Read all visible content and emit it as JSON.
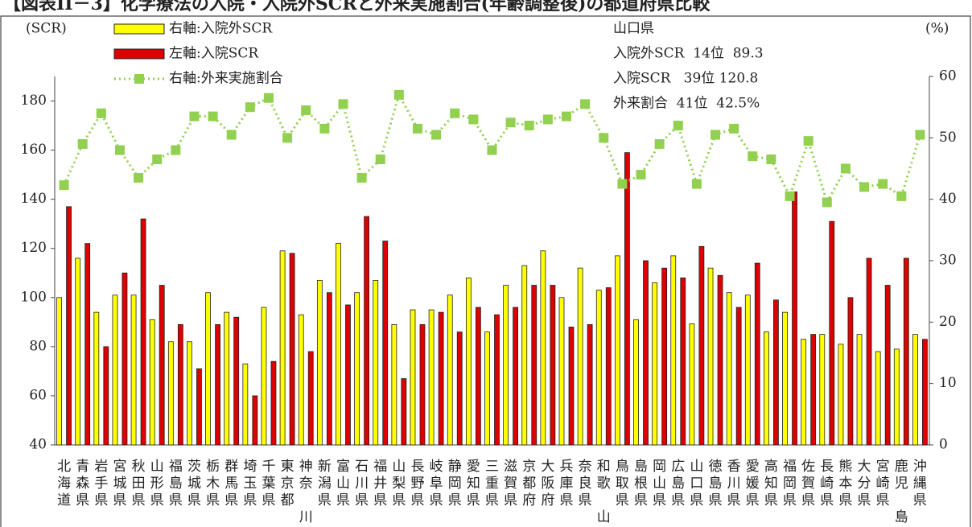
{
  "chart_data": {
    "type": "bar_line",
    "title": "【図表II－3】化学療法の入院・入院外SCRと外来実施割合(年齢調整後)の都道府県比較",
    "ylabel": "(SCR)",
    "y2label": "(%)",
    "categories": [
      "北海道",
      "青森県",
      "岩手県",
      "宮城県",
      "秋田県",
      "山形県",
      "福島県",
      "茨城県",
      "栃木県",
      "群馬県",
      "埼玉県",
      "千葉県",
      "東京都",
      "神奈川県",
      "新潟県",
      "富山県",
      "石川県",
      "福井県",
      "山梨県",
      "長野県",
      "岐阜県",
      "静岡県",
      "愛知県",
      "三重県",
      "滋賀県",
      "京都府",
      "大阪府",
      "兵庫県",
      "奈良県",
      "和歌山県",
      "鳥取県",
      "島根県",
      "岡山県",
      "広島県",
      "山口県",
      "徳島県",
      "香川県",
      "愛媛県",
      "高知県",
      "福岡県",
      "佐賀県",
      "長崎県",
      "熊本県",
      "大分県",
      "宮崎県",
      "鹿児島県",
      "沖縄県"
    ],
    "series": [
      {
        "name": "右軸:入院外SCR",
        "type": "bar",
        "color": "#ffff00",
        "axis": "y",
        "values": [
          100,
          116,
          94,
          101,
          101,
          91,
          82,
          82,
          102,
          94,
          73,
          96,
          119,
          93,
          107,
          122,
          102,
          107,
          89,
          95,
          95,
          101,
          108,
          86,
          105,
          113,
          119,
          100,
          112,
          103,
          117,
          91,
          106,
          117,
          89.3,
          112,
          102,
          101,
          86,
          94,
          83,
          85,
          81,
          85,
          78,
          79,
          85
        ]
      },
      {
        "name": "左軸:入院SCR",
        "type": "bar",
        "color": "#dd0000",
        "axis": "y",
        "values": [
          137,
          122,
          80,
          110,
          132,
          105,
          89,
          71,
          89,
          92,
          60,
          74,
          118,
          78,
          102,
          97,
          133,
          123,
          67,
          89,
          94,
          86,
          96,
          93,
          96,
          105,
          105,
          88,
          89,
          104,
          159,
          115,
          112,
          108,
          120.8,
          109,
          96,
          114,
          99,
          143,
          85,
          131,
          100,
          116,
          105,
          116,
          83
        ]
      },
      {
        "name": "右軸:外来実施割合",
        "type": "line",
        "color": "#92d050",
        "axis": "y2",
        "values": [
          42.3,
          49,
          54,
          48,
          43.5,
          46.5,
          48,
          53.5,
          53.5,
          50.5,
          55,
          56.5,
          50,
          54.5,
          51.5,
          55.5,
          43.5,
          46.5,
          57,
          51.5,
          50.5,
          54,
          53,
          48,
          52.5,
          52,
          53,
          53.5,
          55.5,
          50,
          42.5,
          44,
          49,
          52,
          42.5,
          50.5,
          51.5,
          47,
          46.5,
          40.5,
          49.5,
          39.5,
          45,
          42,
          42.5,
          40.5,
          50.5
        ]
      }
    ],
    "annotations": [
      "山口県",
      "入院外SCR  14位  89.3",
      "入院SCR   39位 120.8",
      "外来割合  41位  42.5%"
    ],
    "ylim": [
      40,
      190
    ],
    "yticks": [
      40,
      60,
      80,
      100,
      120,
      140,
      160,
      180
    ],
    "y2lim": [
      0,
      60
    ],
    "y2ticks": [
      0,
      10,
      20,
      30,
      40,
      50,
      60
    ],
    "grid": false
  }
}
